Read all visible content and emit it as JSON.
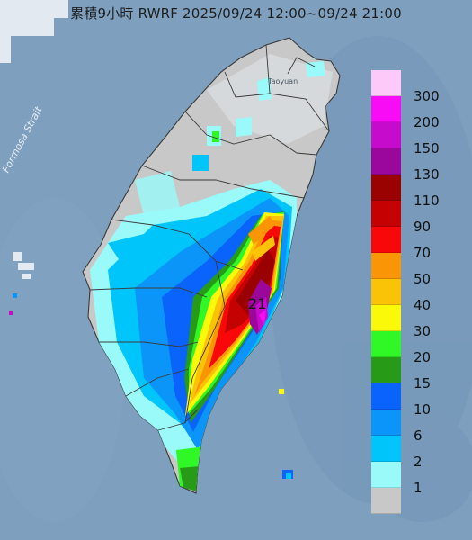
{
  "title": "累積9小時 RWRF 2025/09/24 12:00~09/24 21:00",
  "strait_label": "Formosa Strait",
  "place_label": "Taoyuan",
  "peak_label": "21",
  "legend": {
    "items": [
      {
        "label": "300",
        "color": "#fcc9f8"
      },
      {
        "label": "200",
        "color": "#f70cf5"
      },
      {
        "label": "150",
        "color": "#c70bcc"
      },
      {
        "label": "130",
        "color": "#9b079b"
      },
      {
        "label": "110",
        "color": "#9a0202"
      },
      {
        "label": "90",
        "color": "#c50202"
      },
      {
        "label": "70",
        "color": "#f80808"
      },
      {
        "label": "50",
        "color": "#fa9506"
      },
      {
        "label": "40",
        "color": "#fbc308"
      },
      {
        "label": "30",
        "color": "#fbf90a"
      },
      {
        "label": "20",
        "color": "#2ff826"
      },
      {
        "label": "15",
        "color": "#279b17"
      },
      {
        "label": "10",
        "color": "#0a64fb"
      },
      {
        "label": "6",
        "color": "#0b95f8"
      },
      {
        "label": "2",
        "color": "#00c5fb"
      },
      {
        "label": "1",
        "color": "#9afafa"
      },
      {
        "label": "",
        "color": "#c8c8c8"
      }
    ]
  }
}
